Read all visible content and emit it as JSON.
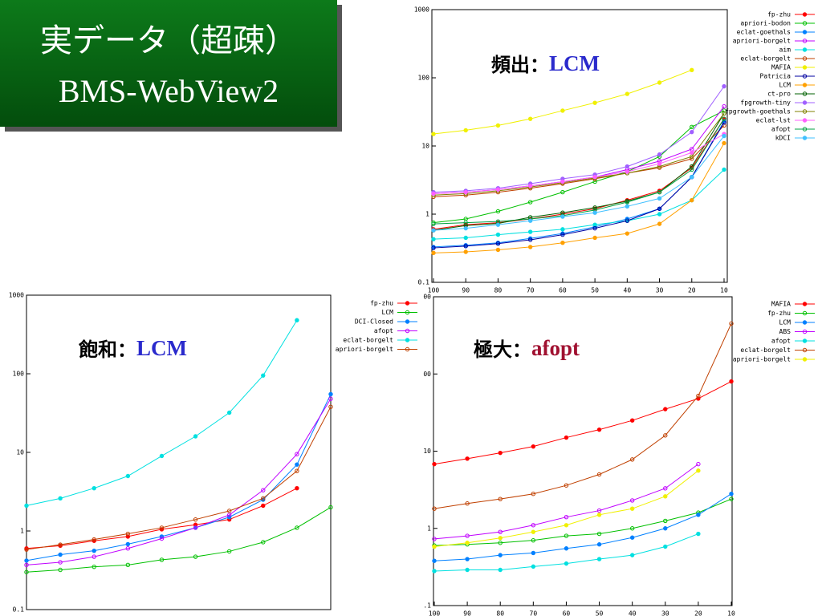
{
  "slide_title": [
    "実データ（超疎）",
    "BMS-WebView2"
  ],
  "chart_data": [
    {
      "type": "line",
      "log_scale": true,
      "ylim": [
        0.1,
        1000
      ],
      "yticks": [
        0.1,
        1,
        10,
        100,
        1000
      ],
      "categories": [
        100,
        90,
        80,
        70,
        60,
        50,
        40,
        30,
        20,
        10
      ],
      "annotation": {
        "label": "頻出：",
        "highlight": "LCM",
        "highlight_color": "#2a2acc"
      },
      "series": [
        {
          "name": "fp-zhu",
          "color": "#ff0000",
          "values": [
            0.6,
            0.7,
            0.75,
            0.85,
            1.0,
            1.2,
            1.6,
            2.2,
            4.8,
            25
          ]
        },
        {
          "name": "apriori-bodon",
          "color": "#00c000",
          "values": [
            0.75,
            0.85,
            1.1,
            1.5,
            2.1,
            3,
            4.2,
            7,
            19,
            33
          ]
        },
        {
          "name": "eclat-goethals",
          "color": "#0080ff",
          "values": [
            0.33,
            0.35,
            0.38,
            0.44,
            0.52,
            0.65,
            0.85,
            1.2,
            3.5,
            23
          ]
        },
        {
          "name": "apriori-borgelt",
          "color": "#c000ff",
          "values": [
            2.0,
            2.1,
            2.3,
            2.6,
            3.0,
            3.5,
            4.5,
            6,
            9,
            38
          ]
        },
        {
          "name": "aim",
          "color": "#00e0e0",
          "values": [
            0.43,
            0.45,
            0.5,
            0.55,
            0.6,
            0.7,
            0.8,
            1.0,
            1.6,
            4.5
          ]
        },
        {
          "name": "eclat-borgelt",
          "color": "#c04000",
          "values": [
            1.8,
            1.9,
            2.1,
            2.4,
            2.8,
            3.3,
            4,
            4.8,
            6.5,
            20
          ]
        },
        {
          "name": "MAFIA",
          "color": "#f0f000",
          "values": [
            15,
            17,
            20,
            25,
            33,
            43,
            58,
            85,
            130,
            null
          ]
        },
        {
          "name": "Patricia",
          "color": "#0000a0",
          "values": [
            0.32,
            0.34,
            0.37,
            0.42,
            0.5,
            0.62,
            0.8,
            1.2,
            3.5,
            22
          ]
        },
        {
          "name": "LCM",
          "color": "#ffa000",
          "values": [
            0.27,
            0.28,
            0.3,
            0.33,
            0.38,
            0.45,
            0.52,
            0.72,
            1.6,
            11
          ]
        },
        {
          "name": "ct-pro",
          "color": "#006000",
          "values": [
            0.58,
            0.68,
            0.73,
            0.9,
            1.05,
            1.25,
            1.55,
            2.1,
            5,
            30
          ]
        },
        {
          "name": "fpgrowth-tiny",
          "color": "#a060ff",
          "values": [
            2.1,
            2.2,
            2.4,
            2.8,
            3.3,
            3.8,
            5,
            7.5,
            16,
            75
          ]
        },
        {
          "name": "fpgrowth-goethals",
          "color": "#808000",
          "values": [
            1.9,
            2.0,
            2.2,
            2.5,
            2.9,
            3.4,
            4.0,
            5,
            7,
            30
          ]
        },
        {
          "name": "eclat-lst",
          "color": "#ff60ff",
          "values": [
            2.0,
            2.1,
            2.3,
            2.6,
            3.0,
            3.5,
            4.2,
            5.5,
            8,
            15
          ]
        },
        {
          "name": "afopt",
          "color": "#00a040",
          "values": [
            0.72,
            0.75,
            0.78,
            0.85,
            0.95,
            1.15,
            1.5,
            2.1,
            4.5,
            25
          ]
        },
        {
          "name": "kDCI",
          "color": "#40c0ff",
          "values": [
            0.58,
            0.62,
            0.7,
            0.8,
            0.92,
            1.05,
            1.3,
            1.7,
            3.5,
            14
          ]
        }
      ]
    },
    {
      "type": "line",
      "log_scale": true,
      "ylim": [
        0.1,
        1000
      ],
      "yticks": [
        0.1,
        1,
        10,
        100,
        1000
      ],
      "annotation": {
        "label": "飽和：",
        "highlight": "LCM",
        "highlight_color": "#2a2acc"
      },
      "series": [
        {
          "name": "fp-zhu",
          "color": "#ff0000",
          "values": [
            0.6,
            0.65,
            0.75,
            0.85,
            1.05,
            1.2,
            1.4,
            2.1,
            3.5,
            null
          ]
        },
        {
          "name": "LCM",
          "color": "#00c000",
          "values": [
            0.3,
            0.32,
            0.35,
            0.37,
            0.43,
            0.47,
            0.55,
            0.72,
            1.1,
            2.0
          ]
        },
        {
          "name": "DCI-Closed",
          "color": "#0080ff",
          "values": [
            0.42,
            0.5,
            0.56,
            0.68,
            0.85,
            1.1,
            1.5,
            2.5,
            7,
            55
          ]
        },
        {
          "name": "afopt",
          "color": "#c000ff",
          "values": [
            0.37,
            0.4,
            0.47,
            0.6,
            0.8,
            1.1,
            1.6,
            3.3,
            9.5,
            48
          ]
        },
        {
          "name": "eclat-borgelt",
          "color": "#00e0e0",
          "values": [
            2.1,
            2.6,
            3.5,
            5,
            9,
            16,
            32,
            95,
            480,
            null
          ]
        },
        {
          "name": "apriori-borgelt",
          "color": "#c04000",
          "values": [
            0.58,
            0.67,
            0.78,
            0.92,
            1.1,
            1.4,
            1.8,
            2.6,
            5.8,
            38
          ]
        }
      ]
    },
    {
      "type": "line",
      "log_scale": true,
      "ylim": [
        0.1,
        1000
      ],
      "yticks": [
        {
          "value": 0.1,
          "label": ".1"
        },
        1,
        10,
        {
          "value": 100,
          "label": "00"
        },
        {
          "value": 1000,
          "label": "00"
        }
      ],
      "categories": [
        100,
        90,
        80,
        70,
        60,
        50,
        40,
        30,
        20,
        10
      ],
      "annotation": {
        "label": "極大：",
        "highlight": "afopt",
        "highlight_color": "#a01030"
      },
      "series": [
        {
          "name": "MAFIA",
          "color": "#ff0000",
          "values": [
            6.8,
            8,
            9.5,
            11.5,
            15,
            19,
            25,
            35,
            48,
            80
          ]
        },
        {
          "name": "fp-zhu",
          "color": "#00c000",
          "values": [
            0.6,
            0.62,
            0.65,
            0.7,
            0.8,
            0.85,
            1.0,
            1.25,
            1.6,
            2.4
          ]
        },
        {
          "name": "LCM",
          "color": "#0080ff",
          "values": [
            0.38,
            0.4,
            0.45,
            0.48,
            0.55,
            0.62,
            0.76,
            1.0,
            1.5,
            2.8
          ]
        },
        {
          "name": "ABS",
          "color": "#c000ff",
          "values": [
            0.73,
            0.8,
            0.9,
            1.1,
            1.4,
            1.7,
            2.3,
            3.3,
            6.8,
            null
          ]
        },
        {
          "name": "afopt",
          "color": "#00e0e0",
          "values": [
            0.28,
            0.29,
            0.29,
            0.32,
            0.35,
            0.4,
            0.45,
            0.58,
            0.85,
            null
          ]
        },
        {
          "name": "eclat-borgelt",
          "color": "#c04000",
          "values": [
            1.8,
            2.1,
            2.4,
            2.8,
            3.6,
            5,
            7.8,
            16,
            52,
            450
          ]
        },
        {
          "name": "apriori-borgelt",
          "color": "#f0f000",
          "values": [
            0.58,
            0.65,
            0.75,
            0.9,
            1.1,
            1.5,
            1.8,
            2.6,
            5.6,
            null
          ]
        }
      ]
    }
  ]
}
